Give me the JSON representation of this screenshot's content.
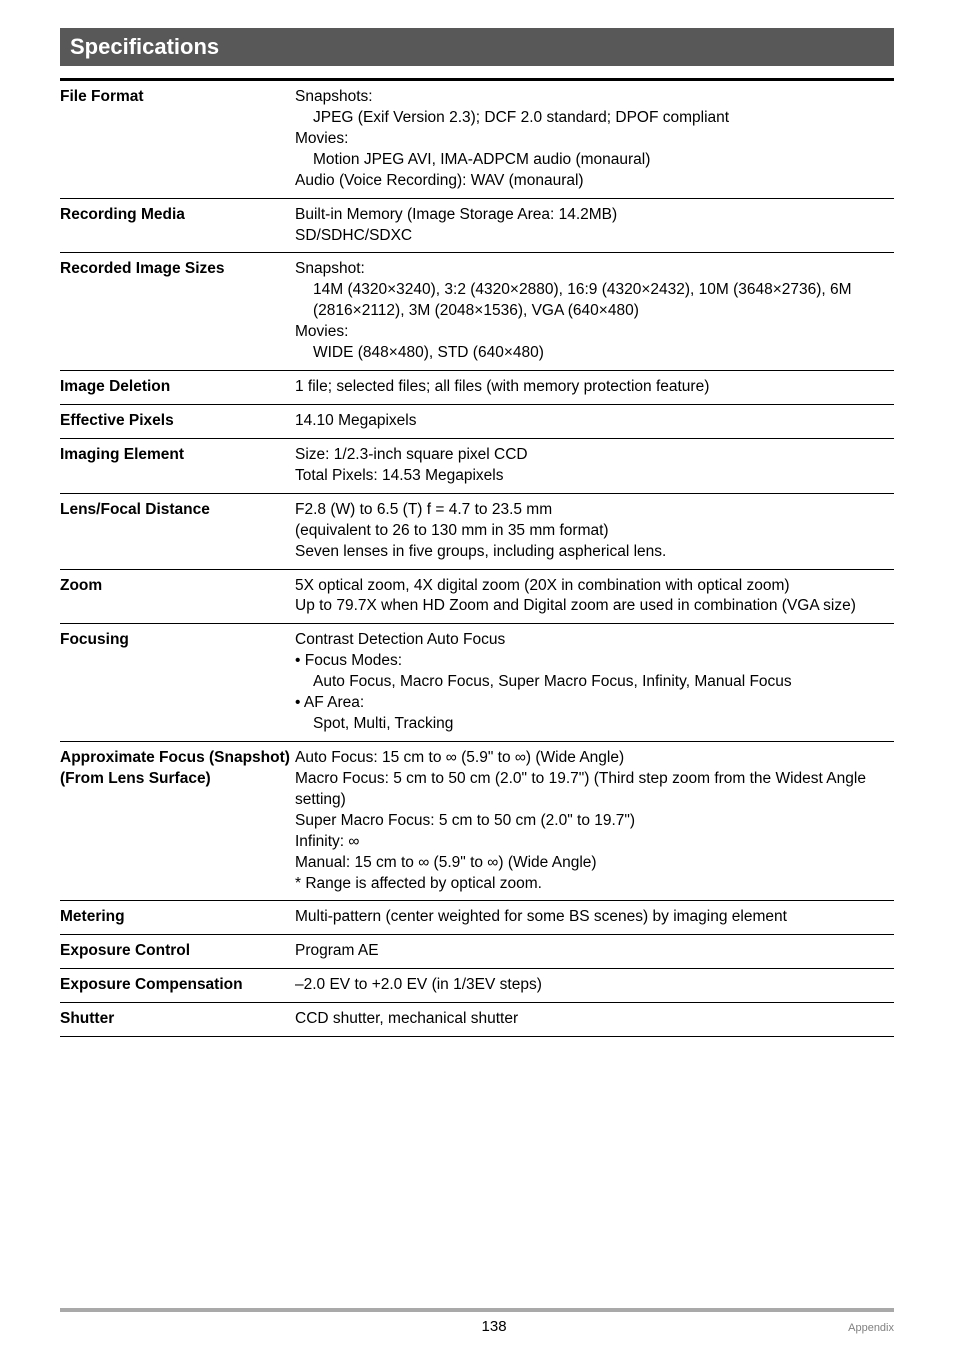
{
  "colors": {
    "title_bg": "#585858",
    "title_fg": "#ffffff",
    "rule": "#000000",
    "footer_rule": "#a9a9a9",
    "footer_text": "#808080",
    "body_text": "#000000",
    "page_bg": "#ffffff"
  },
  "fonts": {
    "title_size_pt": 16,
    "body_size_pt": 11.5,
    "footer_size_pt": 8,
    "page_num_size_pt": 11
  },
  "title": "Specifications",
  "rows": [
    {
      "label": "File Format",
      "thick": true,
      "lines": [
        {
          "t": "Snapshots:",
          "i": 0
        },
        {
          "t": "JPEG (Exif Version 2.3); DCF 2.0 standard; DPOF compliant",
          "i": 1
        },
        {
          "t": "Movies:",
          "i": 0
        },
        {
          "t": "Motion JPEG AVI, IMA-ADPCM audio (monaural)",
          "i": 1
        },
        {
          "t": "Audio (Voice Recording): WAV (monaural)",
          "i": 0
        }
      ]
    },
    {
      "label": "Recording Media",
      "lines": [
        {
          "t": "Built-in Memory (Image Storage Area: 14.2MB)",
          "i": 0
        },
        {
          "t": "SD/SDHC/SDXC",
          "i": 0
        }
      ]
    },
    {
      "label": "Recorded Image Sizes",
      "lines": [
        {
          "t": "Snapshot:",
          "i": 0
        },
        {
          "t": "14M (4320×3240), 3:2 (4320×2880), 16:9 (4320×2432), 10M (3648×2736), 6M (2816×2112), 3M (2048×1536), VGA (640×480)",
          "i": 1
        },
        {
          "t": "Movies:",
          "i": 0
        },
        {
          "t": "WIDE (848×480), STD (640×480)",
          "i": 1
        }
      ]
    },
    {
      "label": "Image Deletion",
      "lines": [
        {
          "t": "1 file; selected files; all files (with memory protection feature)",
          "i": 0
        }
      ]
    },
    {
      "label": "Effective Pixels",
      "lines": [
        {
          "t": "14.10 Megapixels",
          "i": 0
        }
      ]
    },
    {
      "label": "Imaging Element",
      "lines": [
        {
          "t": "Size: 1/2.3-inch square pixel CCD",
          "i": 0
        },
        {
          "t": "Total Pixels: 14.53 Megapixels",
          "i": 0
        }
      ]
    },
    {
      "label": "Lens/Focal Distance",
      "lines": [
        {
          "t": "F2.8 (W) to 6.5 (T) f = 4.7 to 23.5 mm",
          "i": 0
        },
        {
          "t": "(equivalent to 26 to 130 mm in 35 mm format)",
          "i": 0
        },
        {
          "t": "Seven lenses in five groups, including aspherical lens.",
          "i": 0
        }
      ]
    },
    {
      "label": "Zoom",
      "lines": [
        {
          "t": "5X optical zoom, 4X digital zoom (20X in combination with optical zoom)",
          "i": 0
        },
        {
          "t": "Up to 79.7X when HD Zoom and Digital zoom are used in combination (VGA size)",
          "i": 0
        }
      ]
    },
    {
      "label": "Focusing",
      "lines": [
        {
          "t": "Contrast Detection Auto Focus",
          "i": 0
        },
        {
          "t": "• Focus Modes:",
          "i": 0
        },
        {
          "t": "Auto Focus, Macro Focus, Super Macro Focus, Infinity, Manual Focus",
          "i": 1
        },
        {
          "t": "• AF Area:",
          "i": 0
        },
        {
          "t": "Spot, Multi, Tracking",
          "i": 1
        }
      ]
    },
    {
      "label": "Approximate Focus (Snapshot)\n(From Lens Surface)",
      "lines": [
        {
          "t": "Auto Focus: 15 cm to ∞ (5.9\" to ∞) (Wide Angle)",
          "i": 0
        },
        {
          "t": "Macro Focus: 5 cm to 50 cm (2.0\" to 19.7\") (Third step zoom from the Widest Angle setting)",
          "i": 0
        },
        {
          "t": "Super Macro Focus: 5 cm to 50 cm (2.0\" to 19.7\")",
          "i": 0
        },
        {
          "t": "Infinity: ∞",
          "i": 0
        },
        {
          "t": "Manual: 15 cm to ∞ (5.9\" to ∞) (Wide Angle)",
          "i": 0
        },
        {
          "t": "* Range is affected by optical zoom.",
          "i": 0
        }
      ]
    },
    {
      "label": "Metering",
      "lines": [
        {
          "t": "Multi-pattern (center weighted for some BS scenes) by imaging element",
          "i": 0
        }
      ]
    },
    {
      "label": "Exposure Control",
      "lines": [
        {
          "t": "Program AE",
          "i": 0
        }
      ]
    },
    {
      "label": "Exposure Compensation",
      "lines": [
        {
          "t": "–2.0 EV to +2.0 EV (in 1/3EV steps)",
          "i": 0
        }
      ]
    },
    {
      "label": "Shutter",
      "last": true,
      "lines": [
        {
          "t": "CCD shutter, mechanical shutter",
          "i": 0
        }
      ]
    }
  ],
  "footer": {
    "page": "138",
    "section": "Appendix"
  }
}
